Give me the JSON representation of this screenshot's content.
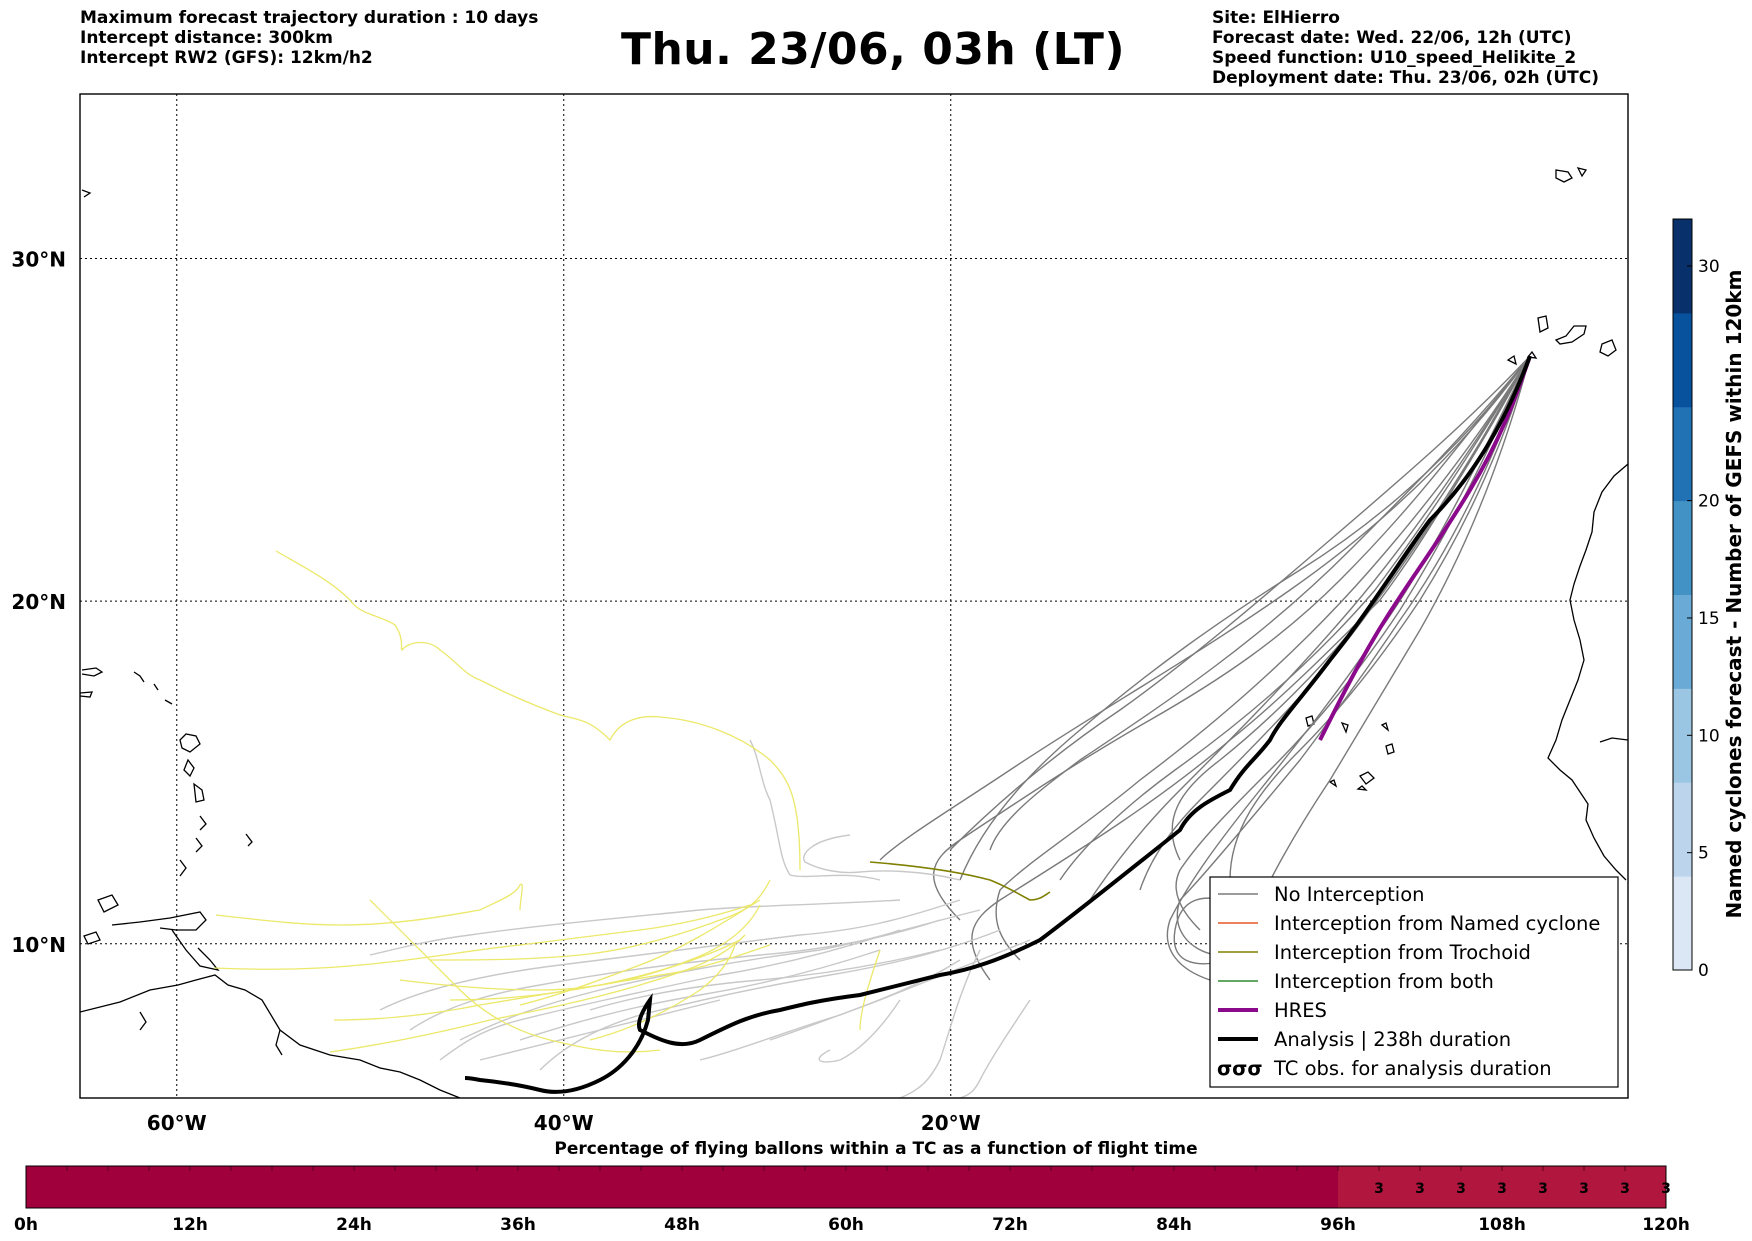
{
  "header": {
    "left_lines": [
      "Maximum forecast trajectory duration : 10 days",
      "Intercept distance: 300km",
      "Intercept RW2 (GFS):  12km/h2"
    ],
    "title": "Thu. 23/06, 03h (LT)",
    "right_lines": [
      "Site: ElHierro",
      "Forecast date: Wed. 22/06, 12h (UTC)",
      "Speed function: U10_speed_Helikite_2",
      "Deployment date: Thu. 23/06, 02h (UTC)"
    ]
  },
  "map": {
    "lon_range": [
      -65,
      15
    ],
    "lat_range": [
      5.5,
      34.8
    ],
    "lon_ticks": [
      {
        "value": -60,
        "label": "60°W"
      },
      {
        "value": -40,
        "label": "40°W"
      },
      {
        "value": -20,
        "label": "20°W"
      }
    ],
    "lat_ticks": [
      {
        "value": 30,
        "label": "30°N"
      },
      {
        "value": 20,
        "label": "20°N"
      },
      {
        "value": 10,
        "label": "10°N"
      }
    ],
    "gridlines": true,
    "colors": {
      "no_interception": "#7a7a7a",
      "no_interception_light": "#c8c8c8",
      "named_cyclone": "#e8562a",
      "trochoid": "#808000",
      "both": "#2e8b2e",
      "hres": "#8b0a8b",
      "analysis": "#000000",
      "yellow": "#ece86a"
    }
  },
  "legend": {
    "items": [
      {
        "label": "No Interception",
        "style": "gray"
      },
      {
        "label": "Interception from Named cyclone",
        "style": "orange"
      },
      {
        "label": "Interception from Trochoid",
        "style": "olive"
      },
      {
        "label": "Interception from both",
        "style": "green"
      },
      {
        "label": "HRES",
        "style": "purple"
      },
      {
        "label": "Analysis | 238h duration",
        "style": "black"
      },
      {
        "label": "TC obs. for analysis duration",
        "style": "tc-symbol"
      }
    ]
  },
  "colorbar": {
    "title": "Named cyclones forecast - Number of GEFS within 120km",
    "range": [
      0,
      32
    ],
    "ticks": [
      0,
      5,
      10,
      15,
      20,
      30
    ],
    "colors": [
      "#dbe7f5",
      "#bcd5ec",
      "#9bc6e3",
      "#6aaad6",
      "#4292c6",
      "#2171b5",
      "#08519c",
      "#08306b"
    ]
  },
  "percentage_bar": {
    "title": "Percentage of flying ballons within a TC as a function of flight time",
    "tick_labels": [
      "0h",
      "12h",
      "24h",
      "36h",
      "48h",
      "60h",
      "72h",
      "84h",
      "96h",
      "108h",
      "120h"
    ],
    "cell_hours": 3,
    "cell_values_text": [
      "3",
      "3",
      "3",
      "3",
      "3",
      "3",
      "3",
      "3"
    ],
    "cell_values_start_hour": 96,
    "base_color": "#a0003c",
    "highlight_color": "#b0163e"
  }
}
